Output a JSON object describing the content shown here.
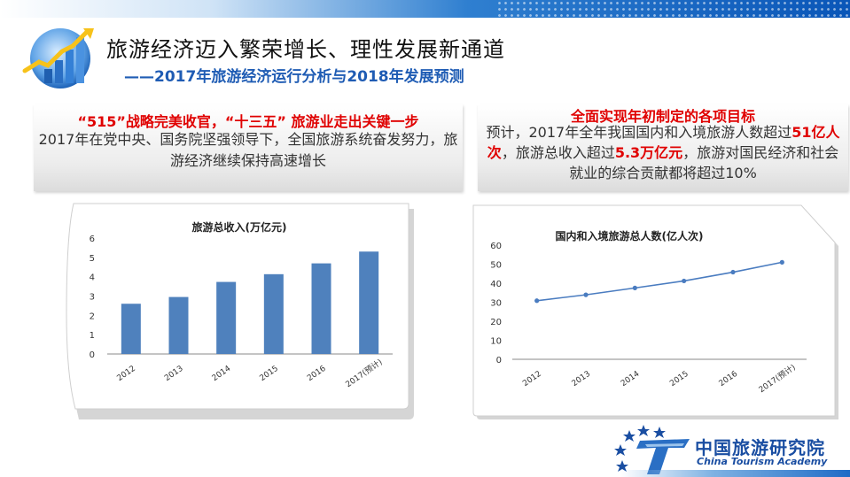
{
  "header": {
    "title": "旅游经济迈入繁荣增长、理性发展新通道",
    "subtitle": "——2017年旅游经济运行分析与2018年发展预测"
  },
  "left_panel": {
    "heading": "“515”战略完美收官，“十三五” 旅游业走出关键一步",
    "body": "2017年在党中央、国务院坚强领导下，全国旅游系统奋发努力，旅游经济继续保持高速增长"
  },
  "right_panel": {
    "heading": "全面实现年初制定的各项目标",
    "body_1": "预计，2017年全年我国国内和入境旅游人数超过",
    "highlight_1": "51亿人次",
    "body_2": "，旅游总收入超过",
    "highlight_2": "5.3万亿元",
    "body_3": "，旅游对国民经济和社会就业的综合贡献都将超过10%"
  },
  "footer": {
    "org_cn": "中国旅游研究院",
    "org_en": "China Tourism Academy"
  },
  "colors": {
    "bar": "#4f81bd",
    "line": "#4a7cc0",
    "accent_red": "#e00000",
    "title_blue": "#1f5cb4",
    "brand_blue": "#1a4ea2"
  },
  "chart_data": [
    {
      "type": "bar",
      "title": "旅游总收入(万亿元)",
      "categories": [
        "2012",
        "2013",
        "2014",
        "2015",
        "2016",
        "2017(预计)"
      ],
      "values": [
        2.6,
        2.95,
        3.73,
        4.13,
        4.69,
        5.3
      ],
      "ylim": [
        0,
        6
      ],
      "yticks": [
        "0",
        "1",
        "2",
        "3",
        "4",
        "5",
        "6"
      ],
      "grid": false
    },
    {
      "type": "line",
      "title": "国内和入境旅游总人数(亿人次)",
      "categories": [
        "2012",
        "2013",
        "2014",
        "2015",
        "2016",
        "2017(预计)"
      ],
      "values": [
        30.8,
        33.9,
        37.5,
        41.2,
        45.8,
        51
      ],
      "ylim": [
        0,
        60
      ],
      "yticks": [
        "0",
        "10",
        "20",
        "30",
        "40",
        "50",
        "60"
      ],
      "grid": false
    }
  ]
}
